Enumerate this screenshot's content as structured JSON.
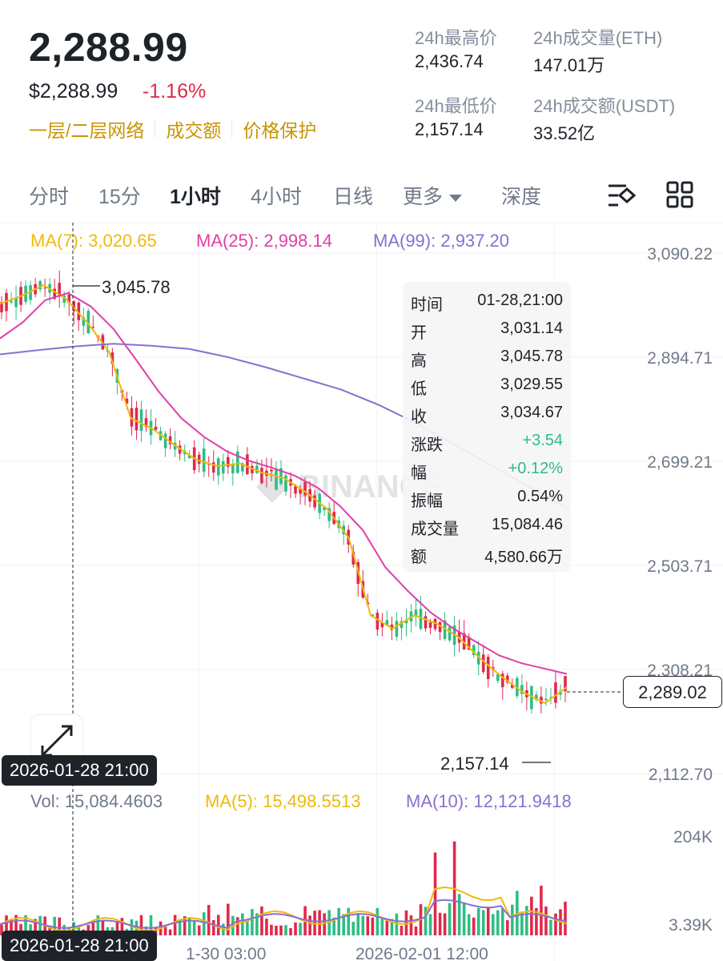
{
  "header": {
    "last_price": "2,288.99",
    "usd_price": "$2,288.99",
    "change_pct": "-1.16%",
    "links": [
      "一层/二层网络",
      "成交额",
      "价格保护"
    ]
  },
  "stats": {
    "high_label": "24h最高价",
    "high_value": "2,436.74",
    "vol_eth_label": "24h成交量(ETH)",
    "vol_eth_value": "147.01万",
    "low_label": "24h最低价",
    "low_value": "2,157.14",
    "vol_usdt_label": "24h成交额(USDT)",
    "vol_usdt_value": "33.52亿"
  },
  "tabs": [
    "分时",
    "15分",
    "1小时",
    "4小时",
    "日线",
    "更多",
    "深度"
  ],
  "active_tab": "1小时",
  "ma_legend": {
    "ma7": "MA(7): 3,020.65",
    "ma25": "MA(25): 2,998.14",
    "ma99": "MA(99): 2,937.20"
  },
  "vol_legend": {
    "vol": "Vol: 15,084.4603",
    "ma5": "MA(5): 15,498.5513",
    "ma10": "MA(10): 12,121.9418"
  },
  "colors": {
    "up": "#2ebd85",
    "down": "#e0294a",
    "ma7": "#f0b90b",
    "ma25": "#e03fa6",
    "ma99": "#8a6fcf",
    "accent": "#c99400"
  },
  "tooltip": [
    {
      "k": "时间",
      "v": "01-28,21:00"
    },
    {
      "k": "开",
      "v": "3,031.14"
    },
    {
      "k": "高",
      "v": "3,045.78"
    },
    {
      "k": "低",
      "v": "3,029.55"
    },
    {
      "k": "收",
      "v": "3,034.67"
    },
    {
      "k": "涨跌",
      "v": "+3.54"
    },
    {
      "k": "幅",
      "v": "+0.12%"
    },
    {
      "k": "振幅",
      "v": "0.54%"
    },
    {
      "k": "成交量",
      "v": "15,084.46"
    },
    {
      "k": "额",
      "v": "4,580.66万"
    }
  ],
  "crosshair_time": "2026-01-28 21:00",
  "last_price_box": "2,289.02",
  "watermark": "BINANCE",
  "chart_data": {
    "type": "candlestick",
    "interval": "1h",
    "y_ticks": [
      3090.22,
      2894.71,
      2699.21,
      2503.71,
      2308.21,
      2112.7
    ],
    "y_tick_labels": [
      "3,090.22",
      "2,894.71",
      "2,699.21",
      "2,503.71",
      "2,308.21",
      "2,112.70"
    ],
    "ylim": [
      2112.7,
      3090.22
    ],
    "x_tick_labels": [
      "1-30 03:00",
      "2026-02-01 12:00"
    ],
    "annotations": {
      "high": "3,045.78",
      "low": "2,157.14"
    },
    "volume_ticks": [
      "204K",
      "3.39K"
    ],
    "series": [
      {
        "name": "MA(7)",
        "close": [
          2995,
          3010,
          3030,
          3005,
          2960,
          2905,
          2780,
          2760,
          2730,
          2702,
          2690,
          2695,
          2678,
          2668,
          2642,
          2610,
          2555,
          2410,
          2385,
          2410,
          2395,
          2370,
          2330,
          2295,
          2265,
          2245,
          2275
        ]
      },
      {
        "name": "MA(25)",
        "close": [
          2930,
          2960,
          3002,
          3015,
          2990,
          2948,
          2890,
          2830,
          2780,
          2745,
          2718,
          2700,
          2687,
          2672,
          2650,
          2615,
          2570,
          2500,
          2455,
          2415,
          2385,
          2360,
          2335,
          2320,
          2310,
          2300
        ]
      },
      {
        "name": "MA(99)",
        "close": [
          2900,
          2908,
          2915,
          2920,
          2916,
          2910,
          2895,
          2876,
          2855,
          2834,
          2805,
          2770,
          2730,
          2690,
          2650,
          2610
        ]
      }
    ]
  }
}
